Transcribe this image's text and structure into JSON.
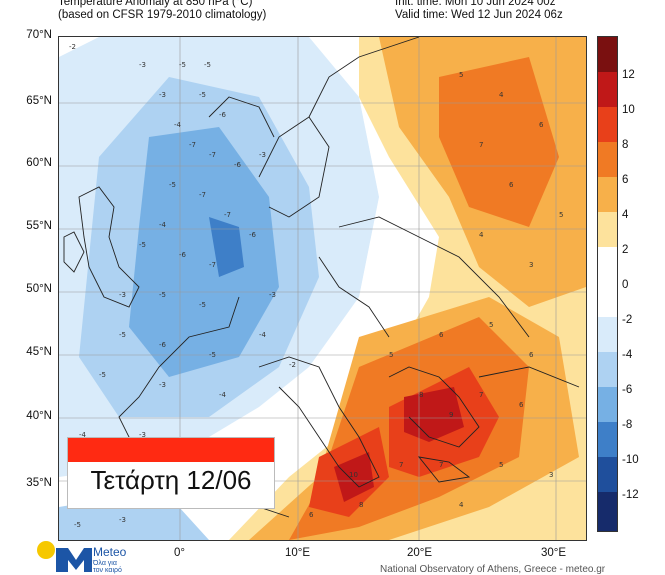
{
  "header": {
    "title_line1": "Temperature Anomaly at 850 hPa (°C)",
    "title_line2": "(based on CFSR 1979-2010 climatology)",
    "init_time": "Init. time: Mon 10 Jun 2024 00z",
    "valid_time": "Valid time: Wed 12 Jun 2024 06z"
  },
  "map": {
    "lat_labels": [
      "70°N",
      "65°N",
      "60°N",
      "55°N",
      "50°N",
      "45°N",
      "40°N",
      "35°N"
    ],
    "lon_labels": [
      "0°",
      "10°E",
      "20°E",
      "30°E"
    ],
    "day_label": "Τετάρτη 12/06"
  },
  "colorbar": {
    "labels": [
      "12",
      "10",
      "8",
      "6",
      "4",
      "2",
      "0",
      "-2",
      "-4",
      "-6",
      "-8",
      "-10",
      "-12"
    ],
    "colors": [
      "#7a1010",
      "#c01818",
      "#e8401a",
      "#f07a24",
      "#f7b04a",
      "#fde29c",
      "#ffffff",
      "#ffffff",
      "#d9ebfa",
      "#aed2f2",
      "#76b0e4",
      "#3e7fc8",
      "#1f4f9c",
      "#162b6b"
    ]
  },
  "branding": {
    "logo_name": "Meteo",
    "logo_tagline_1": "Όλα για",
    "logo_tagline_2": "τον καιρό",
    "footer": "National Observatory of Athens, Greece - meteo.gr"
  }
}
